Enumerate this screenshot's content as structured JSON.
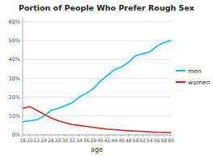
{
  "chart_data": {
    "type": "line",
    "title": "Portion of People Who Prefer Rough Sex",
    "xlabel": "age",
    "x": [
      18,
      20,
      22,
      24,
      26,
      28,
      30,
      32,
      34,
      36,
      38,
      40,
      42,
      44,
      46,
      48,
      50,
      52,
      54,
      56,
      58,
      60
    ],
    "series": [
      {
        "name": "men",
        "color": "#00bfff",
        "values": [
          0.07,
          0.075,
          0.08,
          0.1,
          0.13,
          0.14,
          0.155,
          0.17,
          0.2,
          0.22,
          0.245,
          0.285,
          0.315,
          0.345,
          0.36,
          0.385,
          0.42,
          0.43,
          0.44,
          0.47,
          0.49,
          0.5
        ]
      },
      {
        "name": "women",
        "color": "#dd2020",
        "values": [
          0.14,
          0.15,
          0.13,
          0.11,
          0.09,
          0.075,
          0.065,
          0.055,
          0.05,
          0.045,
          0.04,
          0.035,
          0.03,
          0.028,
          0.025,
          0.022,
          0.02,
          0.018,
          0.016,
          0.014,
          0.013,
          0.012
        ]
      }
    ],
    "xlim": [
      18,
      60
    ],
    "xticks": [
      18,
      20,
      22,
      24,
      26,
      28,
      30,
      32,
      34,
      36,
      38,
      40,
      42,
      44,
      46,
      48,
      50,
      52,
      54,
      56,
      58,
      60
    ],
    "ylim": [
      0,
      0.62
    ],
    "yticks": [
      {
        "value": 0.0,
        "label": "0%"
      },
      {
        "value": 0.1,
        "label": "10%"
      },
      {
        "value": 0.2,
        "label": "20%"
      },
      {
        "value": 0.3,
        "label": "30%"
      },
      {
        "value": 0.4,
        "label": "40%"
      },
      {
        "value": 0.5,
        "label": "50%"
      },
      {
        "value": 0.6,
        "label": "60%"
      }
    ],
    "grid": true,
    "legend": "right"
  }
}
